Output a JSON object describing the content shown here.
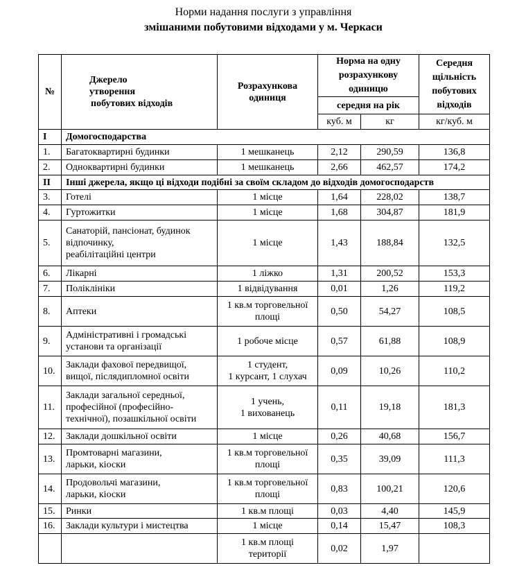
{
  "title_line1": "Норми надання послуги з управління",
  "title_line2": "змішаними побутовими відходами у м. Черкаси",
  "header": {
    "num": "№",
    "source": [
      "Джерело",
      "утворення",
      "побутових відходів"
    ],
    "unit": [
      "Розрахункова",
      "одиниця"
    ],
    "norm": [
      "Норма на одну",
      "розрахункову",
      "одиницю"
    ],
    "norm_sub": "середня на рік",
    "density": [
      "Середня",
      "щільність",
      "побутових",
      "відходів"
    ],
    "u_m3": "куб. м",
    "u_kg": "кг",
    "u_density": "кг/куб. м"
  },
  "sections": [
    {
      "num": "I",
      "label": "Домогосподарства"
    },
    {
      "num": "II",
      "label": "Інші джерела, якщо ці відходи подібні за своїм складом до відходів домогосподарств"
    }
  ],
  "rows": [
    {
      "num": "1.",
      "source": [
        "Багатоквартирні будинки"
      ],
      "unit": [
        "1 мешканець"
      ],
      "m3": "2,12",
      "kg": "290,59",
      "density": "136,8"
    },
    {
      "num": "2.",
      "source": [
        "Одноквартирні будинки"
      ],
      "unit": [
        "1 мешканець"
      ],
      "m3": "2,66",
      "kg": "462,57",
      "density": "174,2"
    },
    {
      "num": "3.",
      "source": [
        "Готелі"
      ],
      "unit": [
        "1 місце"
      ],
      "m3": "1,64",
      "kg": "228,02",
      "density": "138,7"
    },
    {
      "num": "4.",
      "source": [
        "Гуртожитки"
      ],
      "unit": [
        "1 місце"
      ],
      "m3": "1,68",
      "kg": "304,87",
      "density": "181,9"
    },
    {
      "num": "5.",
      "source": [
        "Санаторій, пансіонат, будинок",
        "відпочинку,",
        "реабілітаційні центри"
      ],
      "unit": [
        "1 місце"
      ],
      "m3": "1,43",
      "kg": "188,84",
      "density": "132,5"
    },
    {
      "num": "6.",
      "source": [
        "Лікарні"
      ],
      "unit": [
        "1 ліжко"
      ],
      "m3": "1,31",
      "kg": "200,52",
      "density": "153,3"
    },
    {
      "num": "7.",
      "source": [
        "Поліклініки"
      ],
      "unit": [
        "1 відвідування"
      ],
      "m3": "0,01",
      "kg": "1,26",
      "density": "119,2"
    },
    {
      "num": "8.",
      "source": [
        "Аптеки"
      ],
      "unit": [
        "1 кв.м торговельної",
        "площі"
      ],
      "m3": "0,50",
      "kg": "54,27",
      "density": "108,5"
    },
    {
      "num": "9.",
      "source": [
        "Адміністративні і громадські",
        "установи та організації"
      ],
      "unit": [
        "1 робоче місце"
      ],
      "m3": "0,57",
      "kg": "61,88",
      "density": "108,9"
    },
    {
      "num": "10.",
      "source": [
        "Заклади фахової передвищої,",
        "вищої, післядипломної освіти"
      ],
      "unit": [
        "1 студент,",
        "1 курсант, 1 слухач"
      ],
      "m3": "0,09",
      "kg": "10,26",
      "density": "110,2"
    },
    {
      "num": "11.",
      "source": [
        "Заклади загальної середньої,",
        "професійної (професійно-",
        "технічної), позашкільної освіти"
      ],
      "unit": [
        "1 учень,",
        "1 вихованець"
      ],
      "m3": "0,11",
      "kg": "19,18",
      "density": "181,3"
    },
    {
      "num": "12.",
      "source": [
        "Заклади дошкільної освіти"
      ],
      "unit": [
        "1 місце"
      ],
      "m3": "0,26",
      "kg": "40,68",
      "density": "156,7"
    },
    {
      "num": "13.",
      "source": [
        "Промтоварні магазини,",
        "ларьки, кіоски"
      ],
      "unit": [
        "1 кв.м торговельної",
        "площі"
      ],
      "m3": "0,35",
      "kg": "39,09",
      "density": "111,3"
    },
    {
      "num": "14.",
      "source": [
        "Продовольчі магазини,",
        "ларьки, кіоски"
      ],
      "unit": [
        "1 кв.м торговельної",
        "площі"
      ],
      "m3": "0,83",
      "kg": "100,21",
      "density": "120,6"
    },
    {
      "num": "15.",
      "source": [
        "Ринки"
      ],
      "unit": [
        "1 кв.м площі"
      ],
      "m3": "0,03",
      "kg": "4,40",
      "density": "145,9"
    },
    {
      "num": "16.",
      "source": [
        "Заклади культури і мистецтва"
      ],
      "unit": [
        "1 місце"
      ],
      "m3": "0,14",
      "kg": "15,47",
      "density": "108,3"
    },
    {
      "num": "",
      "source": [
        ""
      ],
      "unit": [
        "1 кв.м площі",
        "території"
      ],
      "m3": "0,02",
      "kg": "1,97",
      "density": ""
    }
  ]
}
